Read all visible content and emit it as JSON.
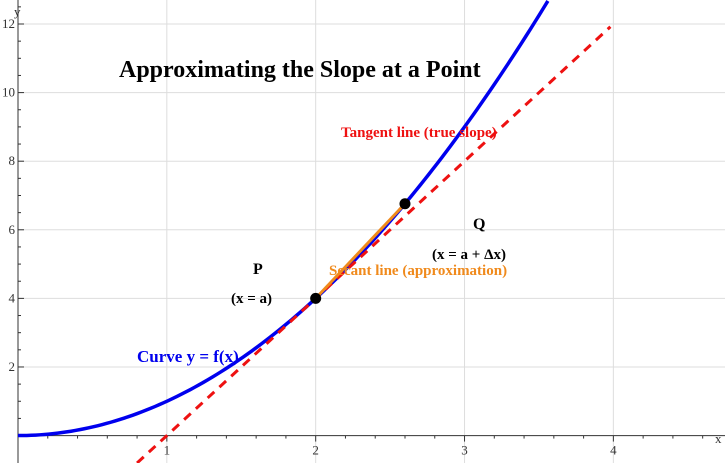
{
  "chart_data": {
    "type": "line",
    "title": "Approximating the Slope at a Point",
    "xlabel": "x",
    "ylabel": "y",
    "xlim": [
      0,
      4.75
    ],
    "ylim": [
      -0.8,
      12.7
    ],
    "x_ticks": [
      1,
      2,
      3,
      4
    ],
    "y_ticks": [
      2,
      4,
      6,
      8,
      10,
      12
    ],
    "grid": true,
    "colors": {
      "curve": "#0000ee",
      "tangent": "#ee1111",
      "secant": "#f08a1c",
      "points": "#000000",
      "grid": "#dddddd"
    },
    "series": [
      {
        "kind": "curve",
        "function": "x^2",
        "x_range": [
          0,
          3.56
        ]
      },
      {
        "kind": "tangent",
        "function": "4x - 4",
        "x_range": [
          0.8,
          3.98
        ]
      },
      {
        "kind": "secant",
        "x": [
          2,
          2.6
        ],
        "y": [
          4,
          6.76
        ]
      }
    ],
    "points": [
      {
        "label": "P",
        "sublabel": "(x = a)",
        "x": 2,
        "y": 4
      },
      {
        "label": "Q",
        "sublabel": "(x = a + Δx)",
        "x": 2.6,
        "y": 6.76
      }
    ],
    "annotations": {
      "tangent_label": "Tangent line (true slope)",
      "secant_label": "Secant line (approximation)",
      "curve_label": "Curve y = f(x)"
    }
  }
}
